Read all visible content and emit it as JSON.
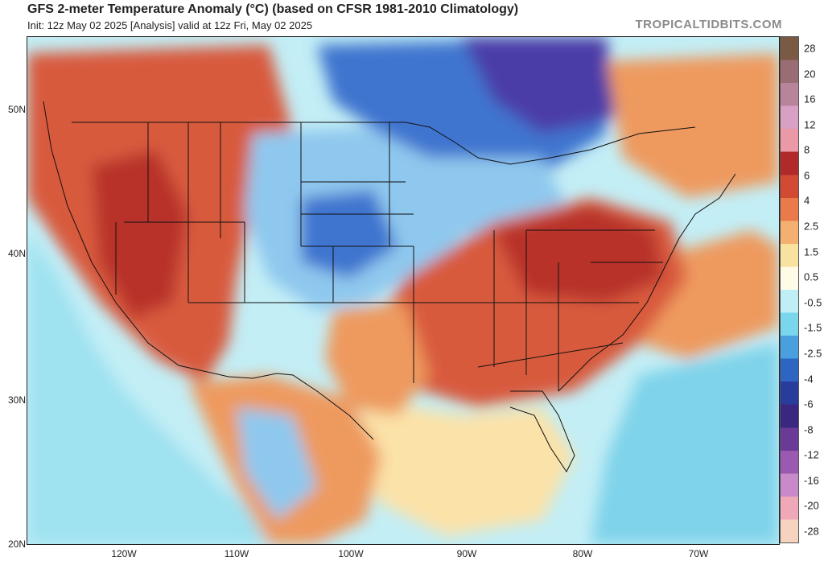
{
  "header": {
    "title": "GFS 2-meter Temperature Anomaly (°C) (based on CFSR 1981-2010 Climatology)",
    "subtitle": "Init: 12z May 02 2025   [Analysis]   valid at 12z Fri, May 02 2025",
    "brand": "TROPICALTIDBITS.COM"
  },
  "axes": {
    "lat_labels": [
      "50N",
      "40N",
      "30N",
      "20N"
    ],
    "lon_labels": [
      "120W",
      "110W",
      "100W",
      "90W",
      "80W",
      "70W"
    ]
  },
  "colorbar": {
    "labels": [
      "28",
      "20",
      "16",
      "12",
      "8",
      "6",
      "4",
      "2.5",
      "1.5",
      "0.5",
      "-0.5",
      "-1.5",
      "-2.5",
      "-4",
      "-6",
      "-8",
      "-12",
      "-16",
      "-20",
      "-28"
    ],
    "colors": [
      "#7a5a44",
      "#9a6c74",
      "#b8849c",
      "#d8a0c4",
      "#ea9aa6",
      "#b02a2a",
      "#d24a34",
      "#ea7a4a",
      "#f4b070",
      "#f8e2a0",
      "#fffbe6",
      "#bfeef6",
      "#7ad6ec",
      "#4aa0de",
      "#2e64c2",
      "#283c9c",
      "#3a2880",
      "#6a3a96",
      "#9a5ab2",
      "#c88ac8",
      "#eea8b8",
      "#f6d2c0"
    ]
  },
  "map": {
    "ocean_colors": {
      "gulf": "#fbe2a8",
      "pacific": "#9fe2f0",
      "atlantic": "#c3eef6",
      "far_atlantic": "#7fd3ea"
    },
    "anomaly_colors": {
      "warm_core": "#b8302a",
      "warm": "#d85a3c",
      "mild": "#ee9a5e",
      "cool": "#8fc8ee",
      "cold": "#3f74cf",
      "very_cold": "#4b3ea8"
    }
  }
}
